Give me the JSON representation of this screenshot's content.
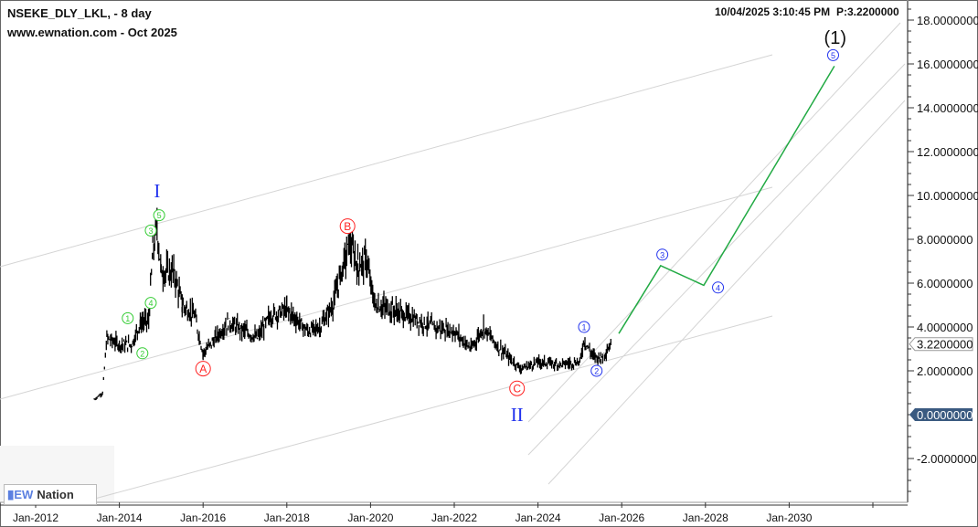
{
  "header": {
    "symbol": "NSEKE_DLY_LKL, - 8 day",
    "site": "www.ewnation.com  - Oct 2025",
    "timestamp": "10/04/2025 3:10:45 PM",
    "price_readout": "P:3.2200000"
  },
  "logo": {
    "text_ew": "EW",
    "text_nation": "Nation"
  },
  "chart_data": {
    "type": "line",
    "title": "",
    "xlabel": "",
    "ylabel": "",
    "xlim": [
      2011.9,
      2033.0
    ],
    "ylim": [
      -3.8,
      18.9
    ],
    "grid": false,
    "x_ticks": [
      "Jan-2012",
      "Jan-2014",
      "Jan-2016",
      "Jan-2018",
      "Jan-2020",
      "Jan-2022",
      "Jan-2024",
      "Jan-2026",
      "Jan-2028",
      "Jan-2030"
    ],
    "y_ticks": [
      "18.0000000",
      "16.0000000",
      "14.0000000",
      "12.0000000",
      "10.0000000",
      "8.0000000",
      "6.0000000",
      "4.0000000",
      "2.0000000",
      "0.0000000",
      "-2.0000000"
    ],
    "last_price_tag": "3.2200000",
    "zero_tag": "0.0000000",
    "colors": {
      "price": "#000000",
      "projection": "#22aa44",
      "channel": "#cfcfcf",
      "green_label": "#33cc33",
      "red_label": "#ff2222",
      "blue_label": "#2233ee"
    },
    "series": [
      {
        "role": "price",
        "x": [
          2013.4,
          2013.6,
          2013.7,
          2014.0,
          2014.3,
          2014.5,
          2014.7,
          2014.8,
          2014.9,
          2015.0,
          2015.3,
          2015.5,
          2015.8,
          2016.0,
          2016.3,
          2016.6,
          2017.0,
          2017.3,
          2017.6,
          2018.0,
          2018.5,
          2018.8,
          2019.1,
          2019.3,
          2019.5,
          2019.7,
          2019.9,
          2020.1,
          2020.5,
          2021.0,
          2021.5,
          2022.0,
          2022.4,
          2022.7,
          2023.0,
          2023.3,
          2023.6,
          2024.0,
          2024.5,
          2025.0,
          2025.1,
          2025.3,
          2025.5,
          2025.75
        ],
        "y": [
          0.7,
          1.0,
          3.5,
          3.2,
          3.2,
          4.2,
          4.3,
          7.5,
          8.6,
          6.5,
          6.5,
          5.0,
          4.5,
          2.8,
          3.5,
          4.2,
          3.8,
          3.5,
          4.5,
          4.8,
          3.8,
          4.0,
          5.0,
          6.5,
          7.8,
          6.8,
          7.0,
          5.0,
          4.8,
          4.4,
          4.0,
          3.8,
          3.0,
          4.0,
          3.2,
          2.6,
          2.1,
          2.4,
          2.3,
          2.4,
          3.4,
          2.7,
          2.6,
          3.2
        ]
      },
      {
        "role": "projection",
        "x": [
          2025.93,
          2026.93,
          2027.96,
          2031.08
        ],
        "y": [
          3.7,
          6.8,
          5.9,
          15.9
        ]
      }
    ],
    "annotations": [
      {
        "text": "I",
        "x": 2014.9,
        "y": 10.2,
        "color": "blue",
        "style": "roman"
      },
      {
        "text": "1",
        "x": 2014.2,
        "y": 4.4,
        "color": "green",
        "style": "circled"
      },
      {
        "text": "2",
        "x": 2014.55,
        "y": 2.8,
        "color": "green",
        "style": "circled"
      },
      {
        "text": "3",
        "x": 2014.75,
        "y": 8.4,
        "color": "green",
        "style": "circled"
      },
      {
        "text": "4",
        "x": 2014.75,
        "y": 5.1,
        "color": "green",
        "style": "circled"
      },
      {
        "text": "5",
        "x": 2014.95,
        "y": 9.1,
        "color": "green",
        "style": "circled"
      },
      {
        "text": "A",
        "x": 2016.0,
        "y": 2.1,
        "color": "red",
        "style": "circled"
      },
      {
        "text": "B",
        "x": 2019.45,
        "y": 8.6,
        "color": "red",
        "style": "circled"
      },
      {
        "text": "C",
        "x": 2023.5,
        "y": 1.2,
        "color": "red",
        "style": "circled"
      },
      {
        "text": "II",
        "x": 2023.5,
        "y": 0.0,
        "color": "blue",
        "style": "roman"
      },
      {
        "text": "1",
        "x": 2025.1,
        "y": 4.0,
        "color": "blue",
        "style": "circled"
      },
      {
        "text": "2",
        "x": 2025.4,
        "y": 2.0,
        "color": "blue",
        "style": "circled"
      },
      {
        "text": "3",
        "x": 2026.97,
        "y": 7.3,
        "color": "blue",
        "style": "circled"
      },
      {
        "text": "4",
        "x": 2028.3,
        "y": 5.8,
        "color": "blue",
        "style": "circled"
      },
      {
        "text": "5",
        "x": 2031.05,
        "y": 16.4,
        "color": "blue",
        "style": "circled"
      },
      {
        "text": "(1)",
        "x": 2031.1,
        "y": 17.2,
        "color": "black",
        "style": "plain"
      }
    ]
  }
}
